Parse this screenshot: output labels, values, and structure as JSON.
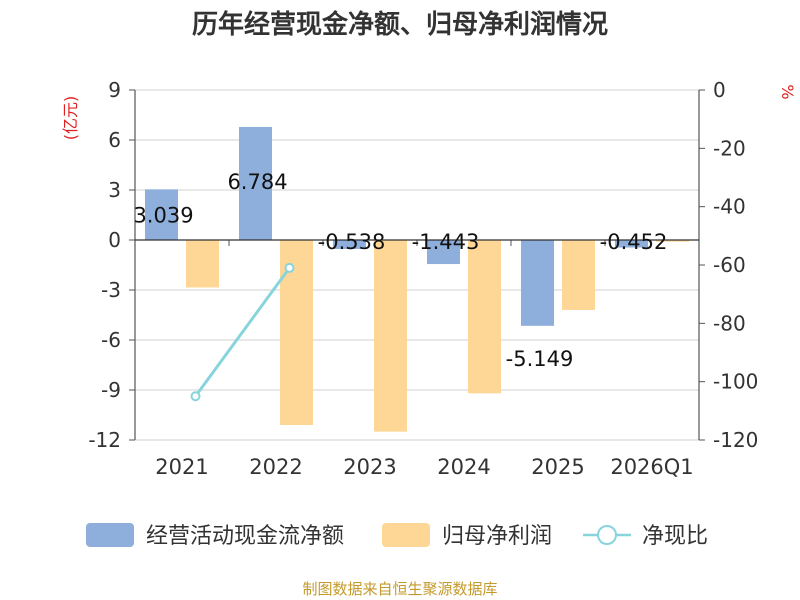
{
  "chart_data": {
    "type": "bar",
    "title": "历年经营现金净额、归母净利润情况",
    "source": "制图数据来自恒生聚源数据库",
    "categories": [
      "2021",
      "2022",
      "2023",
      "2024",
      "2025",
      "2026Q1"
    ],
    "y_left": {
      "label": "(亿元)",
      "range": [
        -12,
        9
      ],
      "ticks": [
        9,
        6,
        3,
        0,
        -3,
        -6,
        -9,
        -12
      ]
    },
    "y_right": {
      "label": "%",
      "range": [
        -120,
        0
      ],
      "ticks": [
        0,
        -20,
        -40,
        -60,
        -80,
        -100,
        -120
      ]
    },
    "series": [
      {
        "name": "经营活动现金流净额",
        "type": "bar",
        "axis": "left",
        "color": "#8eaedc",
        "values": [
          3.039,
          6.784,
          -0.538,
          -1.443,
          -5.149,
          -0.452
        ],
        "labels": [
          "3.039",
          "6.784",
          "-0.538",
          "-1.443",
          "-5.149",
          "-0.452"
        ]
      },
      {
        "name": "归母净利润",
        "type": "bar",
        "axis": "left",
        "color": "#fed797",
        "values": [
          -2.85,
          -11.1,
          -11.5,
          -9.2,
          -4.2,
          -0.1
        ]
      },
      {
        "name": "净现比",
        "type": "line",
        "axis": "right",
        "color": "#88d4dc",
        "values": [
          -105,
          -61,
          null,
          null,
          null,
          null
        ]
      }
    ],
    "legend_position": "bottom"
  }
}
